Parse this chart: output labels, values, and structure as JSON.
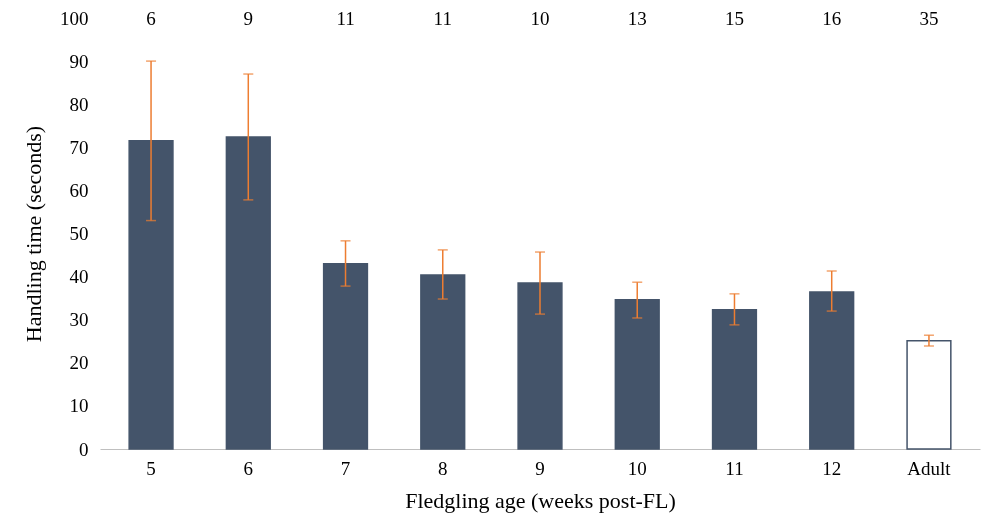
{
  "chart_data": {
    "type": "bar",
    "xlabel": "Fledgling age (weeks post-FL)",
    "ylabel": "Handling time (seconds)",
    "categories": [
      "5",
      "6",
      "7",
      "8",
      "9",
      "10",
      "11",
      "12",
      "Adult"
    ],
    "values": [
      71.5,
      72.4,
      43.0,
      40.4,
      38.5,
      34.6,
      32.3,
      36.4,
      25.1
    ],
    "colors": [
      "#44546a",
      "#44546a",
      "#44546a",
      "#44546a",
      "#44546a",
      "#44546a",
      "#44546a",
      "#44546a",
      "#ffffff"
    ],
    "errors": [
      [
        53,
        90
      ],
      [
        57.8,
        87
      ],
      [
        37.8,
        48.3
      ],
      [
        34.8,
        46.2
      ],
      [
        31.3,
        45.7
      ],
      [
        30.4,
        38.7
      ],
      [
        28.8,
        36
      ],
      [
        32,
        41.3
      ],
      [
        23.9,
        26.4
      ]
    ],
    "ylim": [
      0,
      100
    ],
    "yticks": [
      0,
      10,
      20,
      30,
      40,
      50,
      60,
      70,
      80,
      90,
      100
    ],
    "grid": false,
    "annotations": [
      "6",
      "9",
      "11",
      "11",
      "10",
      "13",
      "15",
      "16",
      "35"
    ]
  }
}
